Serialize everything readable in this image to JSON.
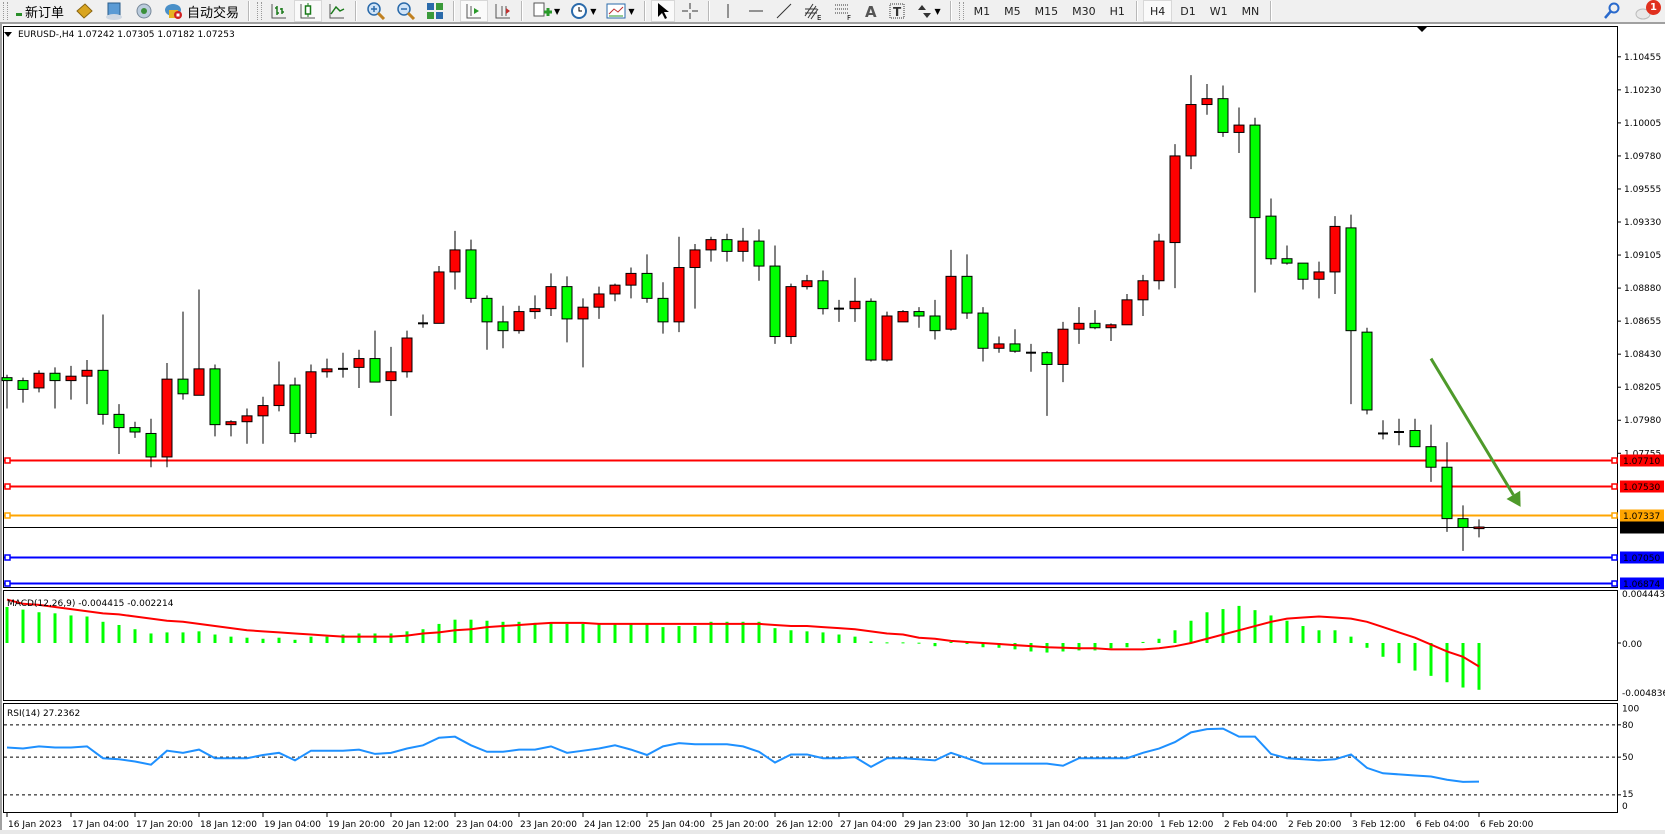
{
  "toolbar": {
    "new_order_label": "新订单",
    "auto_trading_label": "自动交易",
    "timeframes": [
      "M1",
      "M5",
      "M15",
      "M30",
      "H1",
      "H4",
      "D1",
      "W1",
      "MN"
    ],
    "active_timeframe": "H4",
    "notification_count": "1",
    "icons": [
      "new-order-icon",
      "metaeditor-icon",
      "navigator-icon",
      "signals-icon",
      "auto-trading-icon",
      "bar-chart-icon",
      "candlestick-chart-icon",
      "line-chart-icon",
      "zoom-in-icon",
      "zoom-out-icon",
      "tile-windows-icon",
      "auto-scroll-icon",
      "chart-shift-icon",
      "new-indicator-icon",
      "periods-icon",
      "templates-icon",
      "cursor-icon",
      "crosshair-icon",
      "vertical-line-icon",
      "horizontal-line-icon",
      "trendline-icon",
      "fibonacci-channel-icon",
      "fibonacci-retracement-icon",
      "text-icon",
      "text-label-icon",
      "arrows-icon",
      "search-icon",
      "notifications-icon"
    ]
  },
  "chart_data": {
    "type": "candlestick",
    "title": "EURUSD-,H4  1.07242 1.07305 1.07182 1.07253",
    "symbol": "EURUSD-",
    "timeframe": "H4",
    "ohlc_order": [
      "open",
      "high",
      "low",
      "close"
    ],
    "colors": {
      "bull": "#ff0000",
      "bear": "#00ff00",
      "outline": "#000000"
    },
    "price_ticks": [
      "1.10455",
      "1.10230",
      "1.10005",
      "1.09780",
      "1.09555",
      "1.09330",
      "1.09105",
      "1.08880",
      "1.08655",
      "1.08430",
      "1.08205",
      "1.07980",
      "1.07755"
    ],
    "candles": [
      [
        1.0827,
        1.0829,
        1.0806,
        1.0825
      ],
      [
        1.0825,
        1.0827,
        1.081,
        1.0819
      ],
      [
        1.082,
        1.0832,
        1.0817,
        1.083
      ],
      [
        1.083,
        1.0834,
        1.0806,
        1.0825
      ],
      [
        1.0825,
        1.0835,
        1.0812,
        1.0828
      ],
      [
        1.0828,
        1.0839,
        1.0809,
        1.0832
      ],
      [
        1.0832,
        1.087,
        1.0795,
        1.0802
      ],
      [
        1.0802,
        1.0809,
        1.0775,
        1.0793
      ],
      [
        1.0793,
        1.0797,
        1.0786,
        1.079
      ],
      [
        1.0789,
        1.0799,
        1.0766,
        1.0773
      ],
      [
        1.0773,
        1.0837,
        1.0766,
        1.0826
      ],
      [
        1.0826,
        1.0872,
        1.0812,
        1.0816
      ],
      [
        1.0815,
        1.0887,
        1.0815,
        1.0833
      ],
      [
        1.0833,
        1.0836,
        1.0787,
        1.0795
      ],
      [
        1.0795,
        1.0798,
        1.0787,
        1.0797
      ],
      [
        1.0797,
        1.0806,
        1.0782,
        1.0801
      ],
      [
        1.0801,
        1.0814,
        1.0782,
        1.0808
      ],
      [
        1.0808,
        1.0838,
        1.0804,
        1.0822
      ],
      [
        1.0822,
        1.0827,
        1.0783,
        1.0789
      ],
      [
        1.0789,
        1.0836,
        1.0786,
        1.0831
      ],
      [
        1.0831,
        1.084,
        1.0827,
        1.0833
      ],
      [
        1.0833,
        1.0844,
        1.0827,
        1.0833
      ],
      [
        1.0834,
        1.0846,
        1.082,
        1.084
      ],
      [
        1.084,
        1.0859,
        1.0824,
        1.0824
      ],
      [
        1.0825,
        1.0848,
        1.0801,
        1.0831
      ],
      [
        1.0831,
        1.0859,
        1.0827,
        1.0854
      ],
      [
        1.0864,
        1.087,
        1.0861,
        1.0864
      ],
      [
        1.0864,
        1.0903,
        1.0864,
        1.0899
      ],
      [
        1.0899,
        1.0927,
        1.0887,
        1.0914
      ],
      [
        1.0914,
        1.0921,
        1.0878,
        1.0881
      ],
      [
        1.0881,
        1.0883,
        1.0846,
        1.0865
      ],
      [
        1.0865,
        1.0876,
        1.0847,
        1.0859
      ],
      [
        1.0859,
        1.0876,
        1.0857,
        1.0872
      ],
      [
        1.0872,
        1.0883,
        1.0867,
        1.0874
      ],
      [
        1.0874,
        1.0898,
        1.0869,
        1.0889
      ],
      [
        1.0889,
        1.0896,
        1.0851,
        1.0867
      ],
      [
        1.0867,
        1.0881,
        1.0834,
        1.0875
      ],
      [
        1.0875,
        1.0889,
        1.0867,
        1.0884
      ],
      [
        1.0884,
        1.0891,
        1.0879,
        1.089
      ],
      [
        1.089,
        1.0902,
        1.0881,
        1.0898
      ],
      [
        1.0898,
        1.0911,
        1.0878,
        1.0881
      ],
      [
        1.0881,
        1.0892,
        1.0857,
        1.0865
      ],
      [
        1.0865,
        1.0923,
        1.0858,
        1.0902
      ],
      [
        1.0902,
        1.0918,
        1.0874,
        1.0914
      ],
      [
        1.0914,
        1.0923,
        1.0906,
        1.0921
      ],
      [
        1.0921,
        1.0925,
        1.0906,
        1.0913
      ],
      [
        1.0913,
        1.0929,
        1.0906,
        1.092
      ],
      [
        1.092,
        1.0928,
        1.0893,
        1.0903
      ],
      [
        1.0903,
        1.0917,
        1.085,
        1.0855
      ],
      [
        1.0855,
        1.0891,
        1.085,
        1.0889
      ],
      [
        1.0889,
        1.0897,
        1.0887,
        1.0893
      ],
      [
        1.0893,
        1.09,
        1.087,
        1.0874
      ],
      [
        1.0874,
        1.088,
        1.0865,
        1.0874
      ],
      [
        1.0874,
        1.0895,
        1.0865,
        1.0879
      ],
      [
        1.0879,
        1.0881,
        1.0838,
        1.0839
      ],
      [
        1.0839,
        1.0872,
        1.0838,
        1.0869
      ],
      [
        1.0865,
        1.0873,
        1.0865,
        1.0872
      ],
      [
        1.0872,
        1.0875,
        1.0861,
        1.0869
      ],
      [
        1.0869,
        1.088,
        1.0853,
        1.0859
      ],
      [
        1.086,
        1.0914,
        1.0859,
        1.0896
      ],
      [
        1.0896,
        1.0911,
        1.0867,
        1.0871
      ],
      [
        1.0871,
        1.0875,
        1.0838,
        1.0847
      ],
      [
        1.0847,
        1.0855,
        1.0844,
        1.085
      ],
      [
        1.085,
        1.086,
        1.0844,
        1.0845
      ],
      [
        1.0844,
        1.085,
        1.0831,
        1.0844
      ],
      [
        1.0844,
        1.0845,
        1.0801,
        1.0836
      ],
      [
        1.0836,
        1.0865,
        1.0824,
        1.086
      ],
      [
        1.086,
        1.0875,
        1.085,
        1.0864
      ],
      [
        1.0864,
        1.0873,
        1.086,
        1.0861
      ],
      [
        1.0861,
        1.0864,
        1.0852,
        1.0863
      ],
      [
        1.0863,
        1.0884,
        1.0863,
        1.088
      ],
      [
        1.088,
        1.0897,
        1.0869,
        1.0893
      ],
      [
        1.0893,
        1.0925,
        1.0887,
        1.092
      ],
      [
        1.0919,
        1.0986,
        1.0888,
        1.0978
      ],
      [
        1.0978,
        1.1033,
        1.0969,
        1.1013
      ],
      [
        1.1013,
        1.1027,
        1.1006,
        1.1017
      ],
      [
        1.1017,
        1.1026,
        1.0991,
        1.0994
      ],
      [
        1.0994,
        1.1011,
        1.098,
        1.0999
      ],
      [
        1.0999,
        1.1004,
        1.0885,
        1.0936
      ],
      [
        1.0937,
        1.0949,
        1.0904,
        1.0908
      ],
      [
        1.0908,
        1.0917,
        1.0904,
        1.0905
      ],
      [
        1.0905,
        1.0905,
        1.0887,
        1.0894
      ],
      [
        1.0894,
        1.0906,
        1.0881,
        1.0899
      ],
      [
        1.0899,
        1.0937,
        1.0884,
        1.093
      ],
      [
        1.0929,
        1.0938,
        1.0809,
        1.0859
      ],
      [
        1.0858,
        1.0861,
        1.0802,
        1.0805
      ],
      [
        1.0788,
        1.0798,
        1.0785,
        1.0789
      ],
      [
        1.079,
        1.0799,
        1.0781,
        1.079
      ],
      [
        1.0791,
        1.0799,
        1.078,
        1.078
      ],
      [
        1.078,
        1.0795,
        1.0756,
        1.0766
      ],
      [
        1.0766,
        1.0783,
        1.0722,
        1.0731
      ],
      [
        1.0731,
        1.074,
        1.0709,
        1.0725
      ],
      [
        1.07242,
        1.07305,
        1.07182,
        1.07253
      ]
    ],
    "levels": [
      {
        "price": "1.07710",
        "color": "#ff0000",
        "text_color": "#ffffff"
      },
      {
        "price": "1.07530",
        "color": "#ff0000",
        "text_color": "#ffffff"
      },
      {
        "price": "1.07337",
        "color": "#ffa500",
        "text_color": "#ffffff"
      },
      {
        "price": "1.07253",
        "color": "#000000",
        "text_color": "#ffffff",
        "type": "bid"
      },
      {
        "price": "1.07050",
        "color": "#0000ff",
        "text_color": "#ffffff"
      },
      {
        "price": "1.06874",
        "color": "#0000ff",
        "text_color": "#ffffff"
      }
    ],
    "arrow": {
      "from": {
        "bar": 89,
        "price": 1.084
      },
      "to": {
        "bar": 94.6,
        "price": 1.0739
      },
      "color": "#4e9a2a"
    },
    "time_labels": [
      {
        "bar": 0,
        "text": "16 Jan 2023"
      },
      {
        "bar": 4,
        "text": "17 Jan 04:00"
      },
      {
        "bar": 8,
        "text": "17 Jan 20:00"
      },
      {
        "bar": 12,
        "text": "18 Jan 12:00"
      },
      {
        "bar": 16,
        "text": "19 Jan 04:00"
      },
      {
        "bar": 20,
        "text": "19 Jan 20:00"
      },
      {
        "bar": 24,
        "text": "20 Jan 12:00"
      },
      {
        "bar": 28,
        "text": "23 Jan 04:00"
      },
      {
        "bar": 32,
        "text": "23 Jan 20:00"
      },
      {
        "bar": 36,
        "text": "24 Jan 12:00"
      },
      {
        "bar": 40,
        "text": "25 Jan 04:00"
      },
      {
        "bar": 44,
        "text": "25 Jan 20:00"
      },
      {
        "bar": 48,
        "text": "26 Jan 12:00"
      },
      {
        "bar": 52,
        "text": "27 Jan 04:00"
      },
      {
        "bar": 56,
        "text": "29 Jan 23:00"
      },
      {
        "bar": 60,
        "text": "30 Jan 12:00"
      },
      {
        "bar": 64,
        "text": "31 Jan 04:00"
      },
      {
        "bar": 68,
        "text": "31 Jan 20:00"
      },
      {
        "bar": 72,
        "text": "1 Feb 12:00"
      },
      {
        "bar": 76,
        "text": "2 Feb 04:00"
      },
      {
        "bar": 80,
        "text": "2 Feb 20:00"
      },
      {
        "bar": 84,
        "text": "3 Feb 12:00"
      },
      {
        "bar": 88,
        "text": "6 Feb 04:00"
      },
      {
        "bar": 92,
        "text": "6 Feb 20:00"
      }
    ],
    "macd": {
      "title": "MACD(12,26,9) -0.004415 -0.002214",
      "ticks": [
        "0.004443",
        "0.00",
        "-0.004836"
      ],
      "range": [
        -0.004836,
        0.004443
      ],
      "histogram_color": "#00ff00",
      "signal_color": "#ff0000",
      "histogram": [
        0.0034,
        0.00315,
        0.0029,
        0.0028,
        0.0026,
        0.0025,
        0.002,
        0.0017,
        0.0013,
        0.0009,
        0.001,
        0.001,
        0.0011,
        0.0008,
        0.0006,
        0.0005,
        0.0004,
        0.0005,
        0.0003,
        0.0006,
        0.0006,
        0.0008,
        0.0009,
        0.0009,
        0.0009,
        0.0011,
        0.0013,
        0.0018,
        0.0022,
        0.0022,
        0.0021,
        0.002,
        0.002,
        0.0019,
        0.0019,
        0.0018,
        0.0018,
        0.0018,
        0.0018,
        0.0018,
        0.0018,
        0.0015,
        0.0016,
        0.0016,
        0.002,
        0.002,
        0.002,
        0.002,
        0.0014,
        0.0012,
        0.0011,
        0.001,
        0.0008,
        0.0006,
        0.00015,
        6e-05,
        6e-05,
        3e-05,
        -0.0003,
        0.0001,
        -0.0001,
        -0.0004,
        -0.00045,
        -0.0006,
        -0.0008,
        -0.0009,
        -0.0008,
        -0.0007,
        -0.0007,
        -0.0005,
        -0.0004,
        0.0001,
        0.0004,
        0.0012,
        0.0021,
        0.0029,
        0.0032,
        0.0035,
        0.0031,
        0.0026,
        0.0021,
        0.0016,
        0.0012,
        0.0012,
        0.0006,
        -0.00045,
        -0.0013,
        -0.0019,
        -0.0026,
        -0.0031,
        -0.0037,
        -0.0042,
        -0.004415
      ],
      "signal": [
        0.0041,
        0.0037,
        0.0036,
        0.0034,
        0.0032,
        0.003,
        0.0028,
        0.0027,
        0.0025,
        0.0023,
        0.0021,
        0.002,
        0.0018,
        0.0016,
        0.0014,
        0.0012,
        0.0011,
        0.001,
        0.0009,
        0.0008,
        0.0007,
        0.0006,
        0.0006,
        0.0006,
        0.0006,
        0.0007,
        0.0009,
        0.001,
        0.0012,
        0.0013,
        0.0015,
        0.0016,
        0.0017,
        0.0018,
        0.0019,
        0.0019,
        0.0019,
        0.0018,
        0.0018,
        0.0018,
        0.0018,
        0.0018,
        0.0018,
        0.0018,
        0.0018,
        0.0018,
        0.0018,
        0.0018,
        0.0017,
        0.0016,
        0.0016,
        0.0015,
        0.0014,
        0.0013,
        0.0011,
        0.0009,
        0.0008,
        0.0005,
        0.0004,
        0.0002,
        0.0001,
        0.0,
        -0.0001,
        -0.0002,
        -0.0003,
        -0.0004,
        -0.00045,
        -0.0005,
        -0.0005,
        -0.0006,
        -0.0006,
        -0.0006,
        -0.0005,
        -0.0003,
        0.0,
        0.0004,
        0.0008,
        0.0012,
        0.0016,
        0.002,
        0.0023,
        0.0024,
        0.0025,
        0.0024,
        0.0023,
        0.002,
        0.0015,
        0.001,
        0.0005,
        -0.00015,
        -0.0008,
        -0.0013,
        -0.002214
      ]
    },
    "rsi": {
      "title": "RSI(14) 27.2362",
      "ticks": [
        "100",
        "80",
        "50",
        "15",
        "0"
      ],
      "levels": [
        80,
        50,
        15
      ],
      "range": [
        0,
        100
      ],
      "color": "#1e90ff",
      "values": [
        59,
        58,
        60,
        59,
        59,
        60,
        49,
        48,
        46,
        43,
        56,
        54,
        57,
        49,
        49,
        49,
        52,
        54,
        47,
        56,
        56,
        56,
        57,
        53,
        54,
        58,
        61,
        68,
        69,
        61,
        55,
        55,
        57,
        57,
        60,
        54,
        56,
        58,
        61,
        57,
        52,
        60,
        63,
        62,
        62,
        62,
        60,
        55,
        45,
        52.5,
        52.5,
        49,
        49,
        50,
        41,
        49,
        49,
        48,
        47,
        54,
        49,
        44,
        44,
        44,
        44,
        44,
        42,
        49,
        49,
        49,
        49,
        54,
        58,
        64,
        73,
        76,
        76.5,
        69,
        69,
        53,
        49,
        48,
        47,
        48,
        52.5,
        40,
        35,
        34,
        33,
        32,
        29,
        27,
        27.2362
      ]
    }
  }
}
